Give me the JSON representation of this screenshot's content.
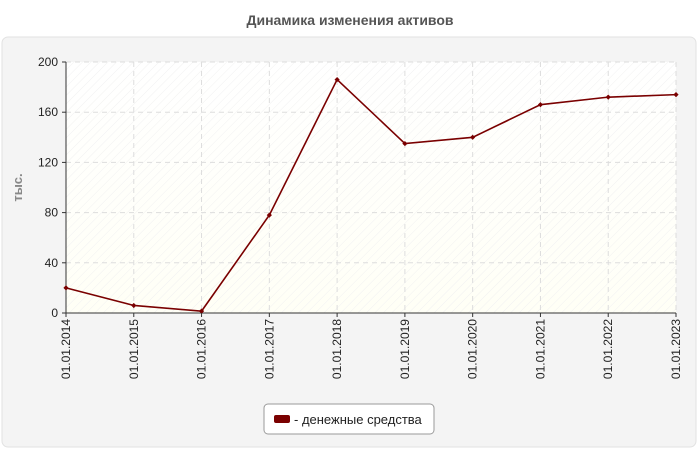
{
  "colors": {
    "series": "#7a0000",
    "panel": "#f4f4f4",
    "plot_top": "#ffffff",
    "plot_bottom": "#fffff6",
    "grid": "#dddddd"
  },
  "chart_data": {
    "type": "line",
    "title": "Динамика изменения активов",
    "xlabel": "",
    "ylabel": "тыс.",
    "categories": [
      "01.01.2014",
      "01.01.2015",
      "01.01.2016",
      "01.01.2017",
      "01.01.2018",
      "01.01.2019",
      "01.01.2020",
      "01.01.2021",
      "01.01.2022",
      "01.01.2023"
    ],
    "series": [
      {
        "name": "- денежные средства",
        "values": [
          20,
          6,
          1.5,
          78,
          186,
          135,
          140,
          166,
          172,
          174
        ]
      }
    ],
    "ylim": [
      0,
      200
    ],
    "yticks": [
      0,
      40,
      80,
      120,
      160,
      200
    ],
    "grid": true,
    "legend_position": "bottom-center"
  }
}
